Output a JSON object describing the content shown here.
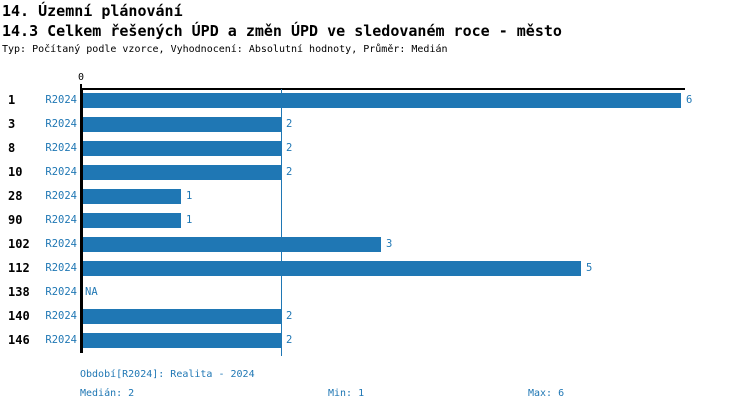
{
  "header": {
    "title": "14. Územní plánování",
    "subtitle": "14.3 Celkem řešených ÚPD a změn ÚPD ve sledovaném roce - město",
    "meta": "Typ: Počítaný podle vzorce, Vyhodnocení: Absolutní hodnoty, Průměr: Medián"
  },
  "chart_data": {
    "type": "bar",
    "orientation": "horizontal",
    "title": "14.3 Celkem řešených ÚPD a změn ÚPD ve sledovaném roce - město",
    "categories": [
      "1",
      "3",
      "8",
      "10",
      "28",
      "90",
      "102",
      "112",
      "138",
      "140",
      "146"
    ],
    "series_label": "R2024",
    "series": [
      {
        "name": "R2024",
        "values": [
          6,
          2,
          2,
          2,
          1,
          1,
          3,
          5,
          null,
          2,
          2
        ]
      }
    ],
    "value_labels": [
      "6",
      "2",
      "2",
      "2",
      "1",
      "1",
      "3",
      "5",
      "NA",
      "2",
      "2"
    ],
    "na_text": "NA",
    "xlim": [
      0,
      6
    ],
    "x_ticks": [
      {
        "value": 0,
        "label": "0"
      }
    ],
    "median_line_value": 2,
    "grid": false,
    "legend": "none"
  },
  "colors": {
    "bar": "#1f77b4",
    "accent_text": "#1f77b4",
    "axis": "#000000",
    "background": "#ffffff"
  },
  "footer": {
    "period": "Období[R2024]: Realita - 2024",
    "median": "Medián: 2",
    "min": "Min: 1",
    "max": "Max: 6"
  }
}
